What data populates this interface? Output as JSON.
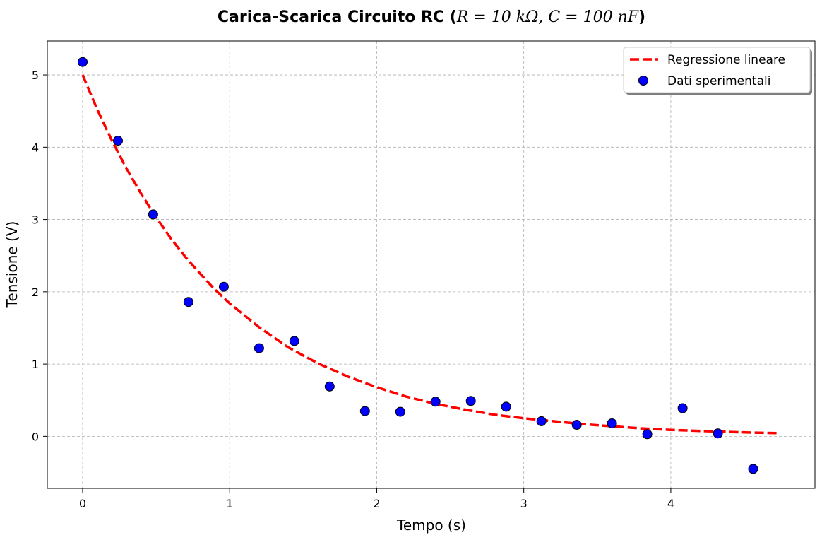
{
  "chart_data": {
    "type": "scatter",
    "title": {
      "bold_prefix": "Carica-Scarica Circuito RC (",
      "math": "R = 10 kΩ, C = 100 nF",
      "bold_suffix": ")"
    },
    "xlabel": "Tempo (s)",
    "ylabel": "Tensione (V)",
    "xlim": [
      -0.24,
      4.98
    ],
    "ylim": [
      -0.72,
      5.47
    ],
    "xticks": [
      0,
      1,
      2,
      3,
      4
    ],
    "yticks": [
      0,
      1,
      2,
      3,
      4,
      5
    ],
    "grid": true,
    "legend_position": "top-right",
    "series": [
      {
        "name": "Regressione lineare",
        "kind": "line",
        "style": "dashed",
        "color": "#ff0000",
        "x": [
          0,
          0.1,
          0.2,
          0.3,
          0.4,
          0.5,
          0.6,
          0.7,
          0.8,
          0.9,
          1.0,
          1.2,
          1.4,
          1.6,
          1.8,
          2.0,
          2.2,
          2.4,
          2.6,
          2.8,
          3.0,
          3.2,
          3.4,
          3.6,
          3.8,
          4.0,
          4.2,
          4.4,
          4.6,
          4.72
        ],
        "y": [
          5.0,
          4.52,
          4.09,
          3.7,
          3.35,
          3.03,
          2.74,
          2.48,
          2.25,
          2.03,
          1.84,
          1.51,
          1.23,
          1.01,
          0.83,
          0.68,
          0.55,
          0.45,
          0.37,
          0.3,
          0.25,
          0.21,
          0.17,
          0.14,
          0.11,
          0.09,
          0.075,
          0.061,
          0.05,
          0.045
        ]
      },
      {
        "name": "Dati sperimentali",
        "kind": "scatter",
        "color": "#0000ff",
        "edge_color": "#000000",
        "x": [
          0,
          0.24,
          0.48,
          0.72,
          0.96,
          1.2,
          1.44,
          1.68,
          1.92,
          2.16,
          2.4,
          2.64,
          2.88,
          3.12,
          3.36,
          3.6,
          3.84,
          4.08,
          4.32,
          4.56
        ],
        "y": [
          5.18,
          4.09,
          3.07,
          1.86,
          2.07,
          1.22,
          1.32,
          0.69,
          0.35,
          0.34,
          0.48,
          0.49,
          0.41,
          0.21,
          0.16,
          0.18,
          0.03,
          0.39,
          0.04,
          -0.45
        ]
      }
    ]
  }
}
